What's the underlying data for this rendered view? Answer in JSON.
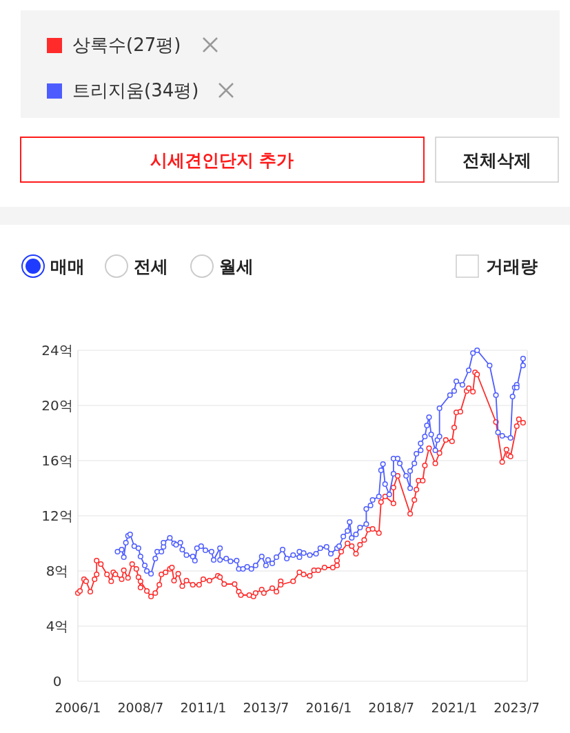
{
  "chart_data": {
    "type": "line",
    "legend": "top",
    "grid": "y",
    "marker": "circle",
    "line_style": "solid",
    "annotations": [
      "시세견인단지 추가",
      "전체삭제",
      "매매",
      "전세",
      "월세",
      "거래량"
    ],
    "xlim": [
      "2006-01",
      "2023-12"
    ],
    "xticks": [
      {
        "value": "2006-01",
        "label": "2006/1"
      },
      {
        "value": "2008-07",
        "label": "2008/7"
      },
      {
        "value": "2011-01",
        "label": "2011/1"
      },
      {
        "value": "2013-07",
        "label": "2013/7"
      },
      {
        "value": "2016-01",
        "label": "2016/1"
      },
      {
        "value": "2018-07",
        "label": "2018/7"
      },
      {
        "value": "2021-01",
        "label": "2021/1"
      },
      {
        "value": "2023-07",
        "label": "2023/7"
      }
    ],
    "ylim": [
      0,
      24
    ],
    "yticks": [
      0,
      {
        "value": 4,
        "label": "4억"
      },
      {
        "value": 8,
        "label": "8억"
      },
      {
        "value": 12,
        "label": "12억"
      },
      {
        "value": 16,
        "label": "16억"
      },
      {
        "value": 20,
        "label": "20억"
      },
      {
        "value": 24,
        "label": "24억"
      }
    ],
    "series": [
      {
        "name": "상록수(27평)",
        "color": "#ff2a2a",
        "x": [
          "2006-01",
          "2006-02",
          "2006-04",
          "2006-05",
          "2006-07",
          "2006-09",
          "2006-10",
          "2006-10",
          "2006-12",
          "2007-03",
          "2007-05",
          "2007-06",
          "2007-07",
          "2007-10",
          "2007-11",
          "2008-01",
          "2008-03",
          "2008-05",
          "2008-06",
          "2008-07",
          "2008-07",
          "2008-10",
          "2008-12",
          "2009-02",
          "2009-04",
          "2009-05",
          "2009-07",
          "2009-09",
          "2009-10",
          "2009-11",
          "2010-01",
          "2010-03",
          "2010-05",
          "2010-08",
          "2010-11",
          "2011-01",
          "2011-04",
          "2011-08",
          "2011-09",
          "2011-11",
          "2012-04",
          "2012-06",
          "2012-07",
          "2012-11",
          "2013-01",
          "2013-02",
          "2013-05",
          "2013-06",
          "2013-10",
          "2013-12",
          "2014-02",
          "2014-02",
          "2014-08",
          "2014-11",
          "2015-01",
          "2015-04",
          "2015-06",
          "2015-08",
          "2015-11",
          "2016-03",
          "2016-05",
          "2016-05",
          "2016-07",
          "2016-10",
          "2016-12",
          "2017-02",
          "2017-04",
          "2017-06",
          "2017-08",
          "2017-10",
          "2018-01",
          "2018-02",
          "2018-04",
          "2018-08",
          "2018-08",
          "2018-10",
          "2019-04",
          "2019-06",
          "2019-07",
          "2019-08",
          "2019-10",
          "2019-11",
          "2020-01",
          "2020-04",
          "2020-06",
          "2020-09",
          "2020-12",
          "2021-01",
          "2021-02",
          "2021-04",
          "2021-07",
          "2021-08",
          "2021-10",
          "2021-11",
          "2021-12",
          "2022-09",
          "2022-12",
          "2023-02",
          "2023-03",
          "2023-04",
          "2023-07",
          "2023-08",
          "2023-10"
        ],
        "values": [
          6.4,
          6.55,
          7.4,
          7.25,
          6.5,
          7.4,
          7.75,
          8.75,
          8.5,
          7.75,
          7.25,
          7.9,
          7.75,
          7.4,
          8.05,
          7.5,
          8.5,
          8.15,
          7.55,
          6.8,
          7.25,
          6.55,
          6.15,
          6.4,
          7.0,
          7.75,
          7.9,
          8.15,
          8.25,
          7.3,
          7.8,
          6.9,
          7.3,
          7.0,
          7.0,
          7.4,
          7.3,
          7.65,
          7.55,
          7.05,
          7.05,
          6.5,
          6.25,
          6.25,
          6.15,
          6.4,
          6.65,
          6.4,
          6.75,
          6.5,
          7.25,
          7.0,
          7.25,
          7.9,
          7.75,
          7.65,
          8.05,
          8.05,
          8.25,
          8.25,
          8.4,
          8.75,
          9.4,
          10.0,
          9.8,
          9.25,
          9.9,
          10.25,
          11.0,
          11.05,
          10.75,
          13.0,
          13.4,
          12.9,
          14.05,
          14.9,
          12.15,
          13.15,
          13.9,
          14.55,
          14.55,
          15.65,
          16.9,
          15.8,
          16.55,
          17.5,
          17.4,
          18.4,
          19.5,
          19.55,
          21.05,
          21.25,
          21.0,
          22.4,
          22.25,
          18.8,
          15.9,
          16.8,
          16.4,
          16.3,
          18.5,
          19.0,
          18.75
        ]
      },
      {
        "name": "트리지움(34평)",
        "color": "#4d5cff",
        "x": [
          "2007-08",
          "2007-10",
          "2007-11",
          "2007-12",
          "2008-01",
          "2008-02",
          "2008-04",
          "2008-06",
          "2008-07",
          "2008-09",
          "2008-10",
          "2008-12",
          "2009-02",
          "2009-03",
          "2009-05",
          "2009-06",
          "2009-06",
          "2009-09",
          "2009-11",
          "2009-12",
          "2010-02",
          "2010-03",
          "2010-05",
          "2010-08",
          "2010-09",
          "2010-10",
          "2010-12",
          "2011-02",
          "2011-05",
          "2011-06",
          "2011-09",
          "2011-09",
          "2011-12",
          "2012-02",
          "2012-05",
          "2012-06",
          "2012-08",
          "2012-10",
          "2012-12",
          "2013-02",
          "2013-05",
          "2013-07",
          "2013-08",
          "2013-10",
          "2013-12",
          "2014-03",
          "2014-05",
          "2014-08",
          "2014-11",
          "2014-11",
          "2015-01",
          "2015-04",
          "2015-07",
          "2015-09",
          "2015-12",
          "2016-02",
          "2016-05",
          "2016-06",
          "2016-08",
          "2016-10",
          "2016-11",
          "2016-12",
          "2017-02",
          "2017-04",
          "2017-07",
          "2017-07",
          "2017-09",
          "2017-10",
          "2018-01",
          "2018-02",
          "2018-03",
          "2018-04",
          "2018-06",
          "2018-08",
          "2018-08",
          "2018-10",
          "2018-11",
          "2019-02",
          "2019-04",
          "2019-04",
          "2019-06",
          "2019-07",
          "2019-09",
          "2019-09",
          "2019-11",
          "2019-12",
          "2020-01",
          "2020-02",
          "2020-04",
          "2020-05",
          "2020-06",
          "2020-06",
          "2020-11",
          "2021-01",
          "2021-02",
          "2021-05",
          "2021-08",
          "2021-10",
          "2021-12",
          "2022-06",
          "2022-09",
          "2022-10",
          "2022-12",
          "2023-04",
          "2023-05",
          "2023-06",
          "2023-07",
          "2023-07",
          "2023-10",
          "2023-10"
        ],
        "values": [
          9.4,
          9.55,
          9.0,
          10.05,
          10.55,
          10.65,
          9.8,
          9.65,
          9.05,
          8.4,
          8.0,
          7.8,
          8.9,
          9.4,
          9.4,
          9.75,
          10.05,
          10.4,
          10.0,
          9.9,
          10.05,
          9.55,
          9.15,
          9.05,
          8.75,
          9.65,
          9.8,
          9.5,
          9.4,
          8.8,
          9.65,
          8.8,
          8.9,
          8.7,
          8.75,
          8.15,
          8.15,
          8.3,
          8.15,
          8.4,
          9.05,
          8.4,
          8.8,
          8.55,
          9.0,
          9.55,
          8.9,
          9.15,
          9.0,
          9.4,
          9.3,
          9.15,
          9.25,
          9.65,
          9.75,
          9.25,
          9.65,
          9.8,
          10.5,
          10.9,
          11.55,
          10.4,
          10.65,
          11.15,
          11.4,
          12.5,
          12.75,
          13.15,
          13.4,
          15.3,
          15.75,
          14.3,
          13.55,
          15.05,
          16.15,
          16.15,
          15.8,
          14.9,
          14.0,
          15.25,
          15.8,
          16.5,
          16.75,
          17.25,
          17.75,
          18.55,
          19.15,
          17.9,
          16.75,
          17.5,
          17.75,
          19.8,
          20.75,
          21.05,
          21.75,
          21.5,
          22.55,
          23.8,
          24.0,
          22.9,
          20.75,
          18.05,
          17.8,
          17.65,
          20.65,
          21.3,
          21.5,
          21.3,
          23.4,
          22.9
        ]
      }
    ]
  }
}
